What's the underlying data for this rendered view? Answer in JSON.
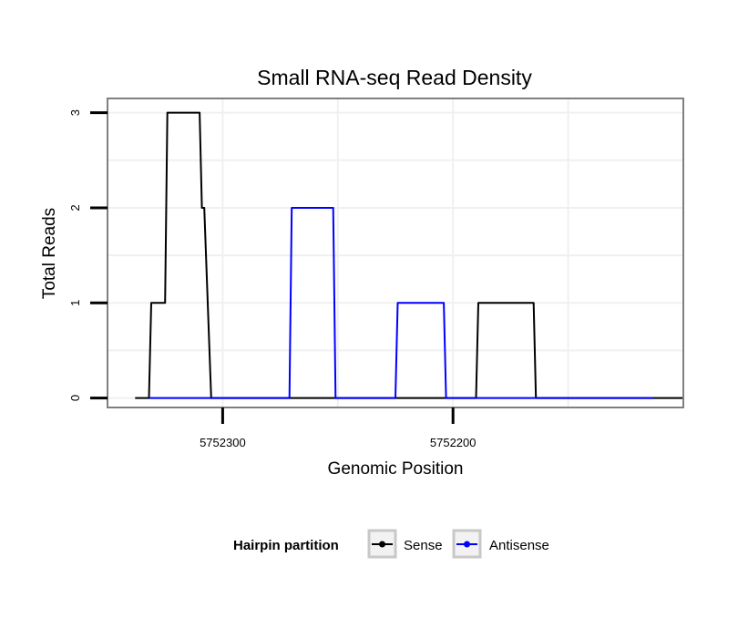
{
  "chart_data": {
    "type": "line",
    "title": "Small RNA-seq Read Density",
    "xlabel": "Genomic Position",
    "ylabel": "Total Reads",
    "x_reversed": true,
    "xlim": [
      5752350,
      5752100
    ],
    "ylim": [
      -0.1,
      3.15
    ],
    "x_ticks": [
      5752300,
      5752200
    ],
    "x_tick_labels": [
      "5752300",
      "5752200"
    ],
    "y_ticks": [
      0,
      1,
      2,
      3
    ],
    "y_tick_labels": [
      "0",
      "1",
      "2",
      "3"
    ],
    "grid": true,
    "legend": {
      "title": "Hairpin partition",
      "position": "bottom",
      "entries": [
        "Sense",
        "Antisense"
      ]
    },
    "series": [
      {
        "name": "Sense",
        "color": "#000000",
        "x": [
          5752338,
          5752332,
          5752331,
          5752325,
          5752324,
          5752310,
          5752309,
          5752308,
          5752305,
          5752299,
          5752190,
          5752189,
          5752175,
          5752165,
          5752164,
          5752100
        ],
        "y": [
          0,
          0,
          1,
          1,
          3,
          3,
          2,
          2,
          0,
          0,
          0,
          1,
          1,
          1,
          0,
          0
        ]
      },
      {
        "name": "Antisense",
        "color": "#0000ff",
        "x": [
          5752332,
          5752271,
          5752270,
          5752252,
          5752251,
          5752225,
          5752224,
          5752204,
          5752203,
          5752113
        ],
        "y": [
          0,
          0,
          2,
          2,
          0,
          0,
          1,
          1,
          0,
          0
        ]
      }
    ]
  }
}
